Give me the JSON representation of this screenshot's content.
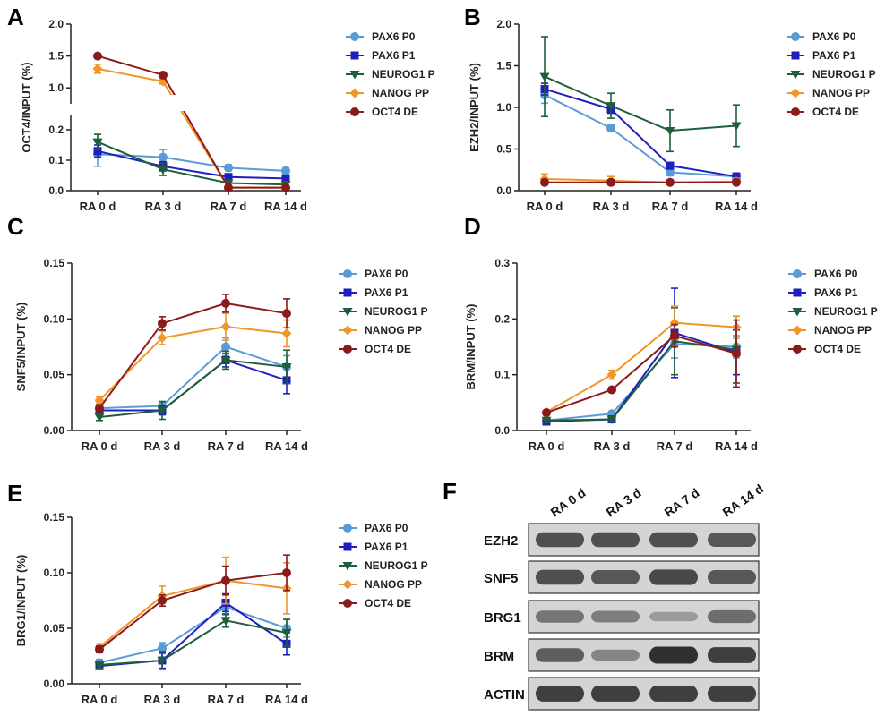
{
  "colors": {
    "PAX6 P0": "#5b9bd5",
    "PAX6 P1": "#1f1fbf",
    "NEUROG1 P": "#1e5e3a",
    "NANOG PP": "#f0962a",
    "OCT4 DE": "#8b1a1a"
  },
  "markers": {
    "PAX6 P0": "circle",
    "PAX6 P1": "square",
    "NEUROG1 P": "triangle-down",
    "NANOG PP": "diamond",
    "OCT4 DE": "circle"
  },
  "chart_data": [
    {
      "panel": "A",
      "type": "line",
      "categories": [
        "RA 0 d",
        "RA 3 d",
        "RA 7 d",
        "RA 14 d"
      ],
      "ylabel": "OCT4/INPUT (%)",
      "axis_break": true,
      "lower_ylim": [
        0,
        0.25
      ],
      "lower_ticks": [
        "0.0",
        "0.1",
        "0.2"
      ],
      "upper_ylim": [
        0.75,
        2.0
      ],
      "upper_ticks": [
        "1.0",
        "1.5",
        "2.0"
      ],
      "series": [
        {
          "name": "PAX6 P0",
          "values": [
            0.12,
            0.11,
            0.075,
            0.065
          ],
          "errors": [
            0.04,
            0.025,
            0.01,
            0.01
          ]
        },
        {
          "name": "PAX6 P1",
          "values": [
            0.13,
            0.08,
            0.045,
            0.04
          ],
          "errors": [
            0.02,
            0.015,
            0.01,
            0.01
          ]
        },
        {
          "name": "NEUROG1 P",
          "values": [
            0.16,
            0.07,
            0.025,
            0.02
          ],
          "errors": [
            0.025,
            0.02,
            0.01,
            0.01
          ]
        },
        {
          "name": "NANOG PP",
          "values": [
            1.3,
            1.1,
            0.01,
            0.01
          ],
          "errors": [
            0.07,
            0.04,
            0.005,
            0.005
          ]
        },
        {
          "name": "OCT4 DE",
          "values": [
            1.5,
            1.2,
            0.01,
            0.01
          ],
          "errors": [
            0.03,
            0.03,
            0.005,
            0.005
          ]
        }
      ]
    },
    {
      "panel": "B",
      "type": "line",
      "categories": [
        "RA 0 d",
        "RA 3 d",
        "RA 7 d",
        "RA 14 d"
      ],
      "ylabel": "EZH2/INPUT (%)",
      "ylim": [
        0,
        2.0
      ],
      "yticks": [
        "0.0",
        "0.5",
        "1.0",
        "1.5",
        "2.0"
      ],
      "series": [
        {
          "name": "PAX6 P0",
          "values": [
            1.15,
            0.75,
            0.22,
            0.17
          ],
          "errors": [
            0.1,
            0.04,
            0.04,
            0.04
          ]
        },
        {
          "name": "PAX6 P1",
          "values": [
            1.22,
            0.98,
            0.3,
            0.17
          ],
          "errors": [
            0.07,
            0.05,
            0.04,
            0.04
          ]
        },
        {
          "name": "NEUROG1 P",
          "values": [
            1.37,
            1.02,
            0.72,
            0.78
          ],
          "errors": [
            0.48,
            0.15,
            0.25,
            0.25
          ]
        },
        {
          "name": "NANOG PP",
          "values": [
            0.14,
            0.12,
            0.1,
            0.11
          ],
          "errors": [
            0.06,
            0.05,
            0.03,
            0.04
          ]
        },
        {
          "name": "OCT4 DE",
          "values": [
            0.1,
            0.1,
            0.1,
            0.1
          ],
          "errors": [
            0.03,
            0.03,
            0.02,
            0.02
          ]
        }
      ]
    },
    {
      "panel": "C",
      "type": "line",
      "categories": [
        "RA 0 d",
        "RA 3 d",
        "RA 7 d",
        "RA 14 d"
      ],
      "ylabel": "SNF5/INPUT (%)",
      "ylim": [
        0,
        0.15
      ],
      "yticks": [
        "0.00",
        "0.05",
        "0.10",
        "0.15"
      ],
      "series": [
        {
          "name": "PAX6 P0",
          "values": [
            0.02,
            0.022,
            0.075,
            0.057
          ],
          "errors": [
            0.003,
            0.004,
            0.008,
            0.01
          ]
        },
        {
          "name": "PAX6 P1",
          "values": [
            0.018,
            0.018,
            0.063,
            0.045
          ],
          "errors": [
            0.003,
            0.004,
            0.006,
            0.012
          ]
        },
        {
          "name": "NEUROG1 P",
          "values": [
            0.012,
            0.018,
            0.063,
            0.057
          ],
          "errors": [
            0.003,
            0.008,
            0.008,
            0.015
          ]
        },
        {
          "name": "NANOG PP",
          "values": [
            0.027,
            0.083,
            0.093,
            0.087
          ],
          "errors": [
            0.003,
            0.006,
            0.012,
            0.012
          ]
        },
        {
          "name": "OCT4 DE",
          "values": [
            0.02,
            0.096,
            0.114,
            0.105
          ],
          "errors": [
            0.003,
            0.006,
            0.008,
            0.013
          ]
        }
      ]
    },
    {
      "panel": "D",
      "type": "line",
      "categories": [
        "RA 0 d",
        "RA 3 d",
        "RA 7 d",
        "RA 14 d"
      ],
      "ylabel": "BRM/INPUT (%)",
      "ylim": [
        0,
        0.3
      ],
      "yticks": [
        "0.0",
        "0.1",
        "0.2",
        "0.3"
      ],
      "series": [
        {
          "name": "PAX6 P0",
          "values": [
            0.018,
            0.03,
            0.155,
            0.15
          ],
          "errors": [
            0.003,
            0.004,
            0.025,
            0.02
          ]
        },
        {
          "name": "PAX6 P1",
          "values": [
            0.016,
            0.02,
            0.175,
            0.14
          ],
          "errors": [
            0.003,
            0.004,
            0.08,
            0.04
          ]
        },
        {
          "name": "NEUROG1 P",
          "values": [
            0.018,
            0.02,
            0.16,
            0.145
          ],
          "errors": [
            0.003,
            0.004,
            0.06,
            0.06
          ]
        },
        {
          "name": "NANOG PP",
          "values": [
            0.033,
            0.1,
            0.193,
            0.185
          ],
          "errors": [
            0.003,
            0.008,
            0.03,
            0.02
          ]
        },
        {
          "name": "OCT4 DE",
          "values": [
            0.032,
            0.073,
            0.17,
            0.138
          ],
          "errors": [
            0.003,
            0.004,
            0.02,
            0.06
          ]
        }
      ]
    },
    {
      "panel": "E",
      "type": "line",
      "categories": [
        "RA 0 d",
        "RA 3 d",
        "RA 7 d",
        "RA 14 d"
      ],
      "ylabel": "BRG1/INPUT (%)",
      "ylim": [
        0,
        0.15
      ],
      "yticks": [
        "0.00",
        "0.05",
        "0.10",
        "0.15"
      ],
      "series": [
        {
          "name": "PAX6 P0",
          "values": [
            0.019,
            0.032,
            0.069,
            0.05
          ],
          "errors": [
            0.003,
            0.005,
            0.007,
            0.008
          ]
        },
        {
          "name": "PAX6 P1",
          "values": [
            0.016,
            0.021,
            0.073,
            0.036
          ],
          "errors": [
            0.003,
            0.007,
            0.008,
            0.01
          ]
        },
        {
          "name": "NEUROG1 P",
          "values": [
            0.017,
            0.021,
            0.057,
            0.046
          ],
          "errors": [
            0.003,
            0.008,
            0.006,
            0.012
          ]
        },
        {
          "name": "NANOG PP",
          "values": [
            0.033,
            0.079,
            0.093,
            0.086
          ],
          "errors": [
            0.003,
            0.009,
            0.021,
            0.023
          ]
        },
        {
          "name": "OCT4 DE",
          "values": [
            0.031,
            0.075,
            0.093,
            0.1
          ],
          "errors": [
            0.003,
            0.005,
            0.013,
            0.016
          ]
        }
      ]
    }
  ],
  "blot": {
    "panel": "F",
    "lanes": [
      "RA 0 d",
      "RA 3 d",
      "RA 7 d",
      "RA 14 d"
    ],
    "rows": [
      {
        "label": "EZH2",
        "intensity": [
          0.8,
          0.8,
          0.8,
          0.75
        ]
      },
      {
        "label": "SNF5",
        "intensity": [
          0.8,
          0.75,
          0.85,
          0.75
        ]
      },
      {
        "label": "BRG1",
        "intensity": [
          0.55,
          0.5,
          0.3,
          0.6
        ]
      },
      {
        "label": "BRM",
        "intensity": [
          0.7,
          0.45,
          1.0,
          0.9
        ]
      },
      {
        "label": "ACTIN",
        "intensity": [
          0.9,
          0.9,
          0.9,
          0.9
        ]
      }
    ]
  }
}
